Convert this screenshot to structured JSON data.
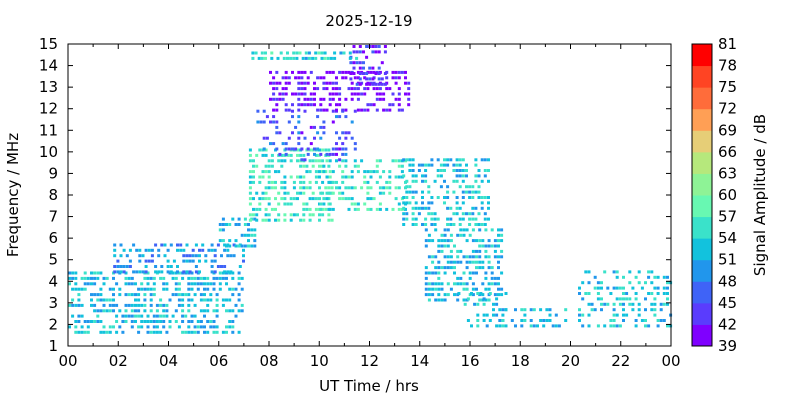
{
  "chart_data": {
    "type": "heatmap",
    "title": "2025-12-19",
    "xlabel": "UT Time / hrs",
    "ylabel": "Frequency / MHz",
    "xlim": [
      0,
      24
    ],
    "ylim": [
      1,
      15
    ],
    "x_ticks": [
      "00",
      "02",
      "04",
      "06",
      "08",
      "10",
      "12",
      "14",
      "16",
      "18",
      "20",
      "22",
      "00"
    ],
    "y_ticks": [
      "1",
      "2",
      "3",
      "4",
      "5",
      "6",
      "7",
      "8",
      "9",
      "10",
      "11",
      "12",
      "13",
      "14",
      "15"
    ],
    "colorbar": {
      "label": "Signal Amplitude / dB",
      "range": [
        39,
        81
      ],
      "ticks": [
        "39",
        "42",
        "45",
        "48",
        "51",
        "54",
        "57",
        "60",
        "63",
        "66",
        "69",
        "72",
        "75",
        "78",
        "81"
      ],
      "colors": [
        "#7f00ff",
        "#5a3cfd",
        "#3f63f7",
        "#2196ec",
        "#12c2dd",
        "#3ae2ca",
        "#68f8b2",
        "#8ef396",
        "#b6e87c",
        "#e6ce77",
        "#ff9f55",
        "#ff6c3a",
        "#ff4423",
        "#ff0000"
      ]
    },
    "regions": [
      {
        "x": [
          0.0,
          7.0
        ],
        "y": [
          1.5,
          4.3
        ],
        "value": 52,
        "density": 0.55
      },
      {
        "x": [
          1.8,
          7.0
        ],
        "y": [
          4.3,
          5.6
        ],
        "value": 50,
        "density": 0.45
      },
      {
        "x": [
          6.0,
          7.5
        ],
        "y": [
          5.5,
          7.0
        ],
        "value": 52,
        "density": 0.45
      },
      {
        "x": [
          7.2,
          10.5
        ],
        "y": [
          6.7,
          10.0
        ],
        "value": 56,
        "density": 0.55
      },
      {
        "x": [
          10.0,
          13.5
        ],
        "y": [
          7.2,
          9.5
        ],
        "value": 55,
        "density": 0.45
      },
      {
        "x": [
          7.5,
          11.5
        ],
        "y": [
          9.5,
          12.0
        ],
        "value": 45,
        "density": 0.3
      },
      {
        "x": [
          8.0,
          13.6
        ],
        "y": [
          11.8,
          13.8
        ],
        "value": 41,
        "density": 0.55
      },
      {
        "x": [
          11.2,
          12.6
        ],
        "y": [
          13.0,
          14.8
        ],
        "value": 43,
        "density": 0.55
      },
      {
        "x": [
          7.3,
          11.5
        ],
        "y": [
          14.2,
          14.7
        ],
        "value": 54,
        "density": 0.6
      },
      {
        "x": [
          13.3,
          16.8
        ],
        "y": [
          6.5,
          9.6
        ],
        "value": 53,
        "density": 0.5
      },
      {
        "x": [
          14.2,
          17.3
        ],
        "y": [
          3.0,
          6.5
        ],
        "value": 52,
        "density": 0.55
      },
      {
        "x": [
          15.5,
          17.5
        ],
        "y": [
          1.8,
          3.5
        ],
        "value": 52,
        "density": 0.35
      },
      {
        "x": [
          17.0,
          20.0
        ],
        "y": [
          1.8,
          2.8
        ],
        "value": 52,
        "density": 0.35
      },
      {
        "x": [
          20.3,
          24.0
        ],
        "y": [
          1.8,
          4.5
        ],
        "value": 53,
        "density": 0.35
      }
    ]
  }
}
